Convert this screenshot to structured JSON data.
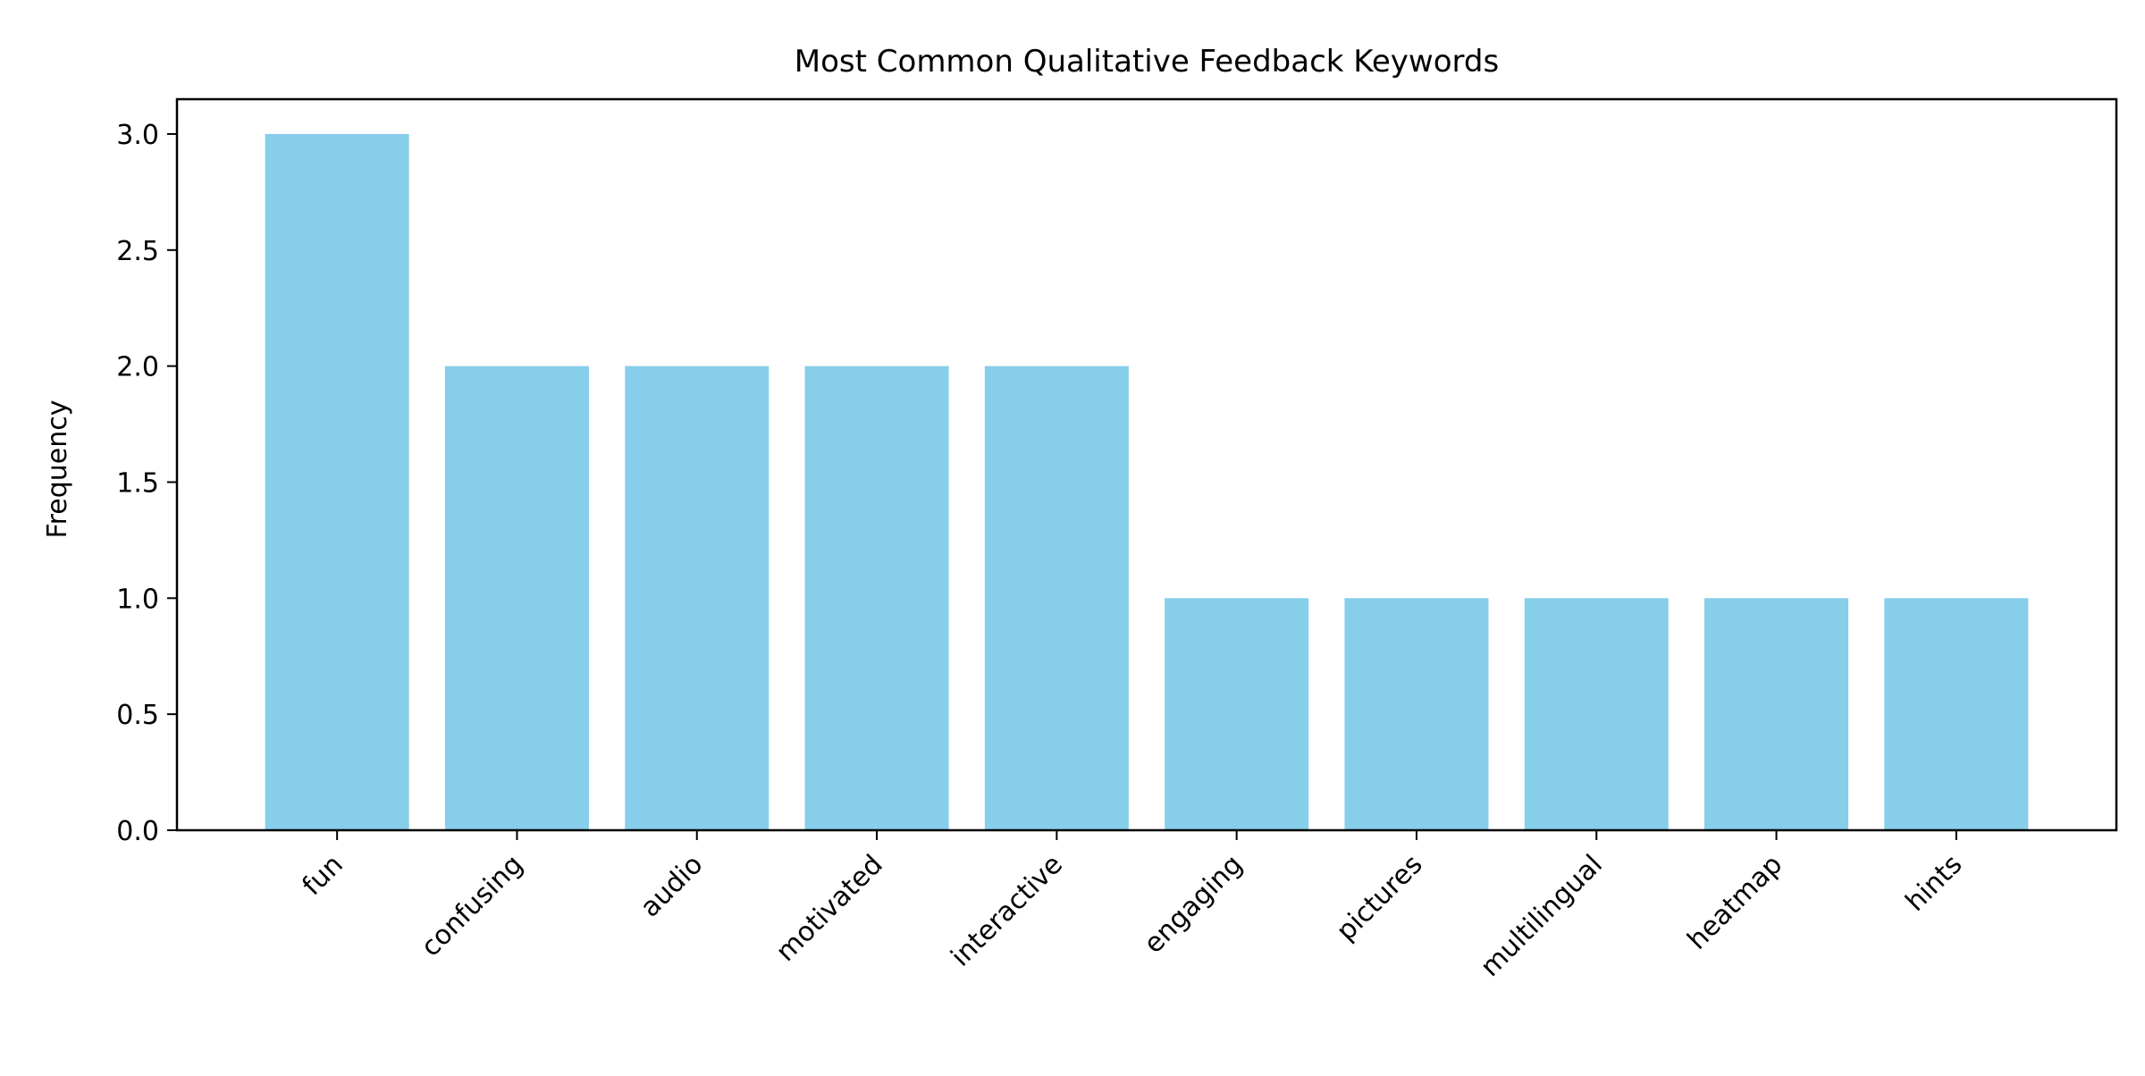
{
  "chart_data": {
    "type": "bar",
    "title": "Most Common Qualitative Feedback Keywords",
    "xlabel": "",
    "ylabel": "Frequency",
    "categories": [
      "fun",
      "confusing",
      "audio",
      "motivated",
      "interactive",
      "engaging",
      "pictures",
      "multilingual",
      "heatmap",
      "hints"
    ],
    "values": [
      3,
      2,
      2,
      2,
      2,
      1,
      1,
      1,
      1,
      1
    ],
    "ylim": [
      0,
      3.15
    ],
    "yticks": [
      0.0,
      0.5,
      1.0,
      1.5,
      2.0,
      2.5,
      3.0
    ],
    "ytick_labels": [
      "0.0",
      "0.5",
      "1.0",
      "1.5",
      "2.0",
      "2.5",
      "3.0"
    ],
    "grid": false,
    "legend": "none",
    "bar_color": "#87CEEB"
  }
}
